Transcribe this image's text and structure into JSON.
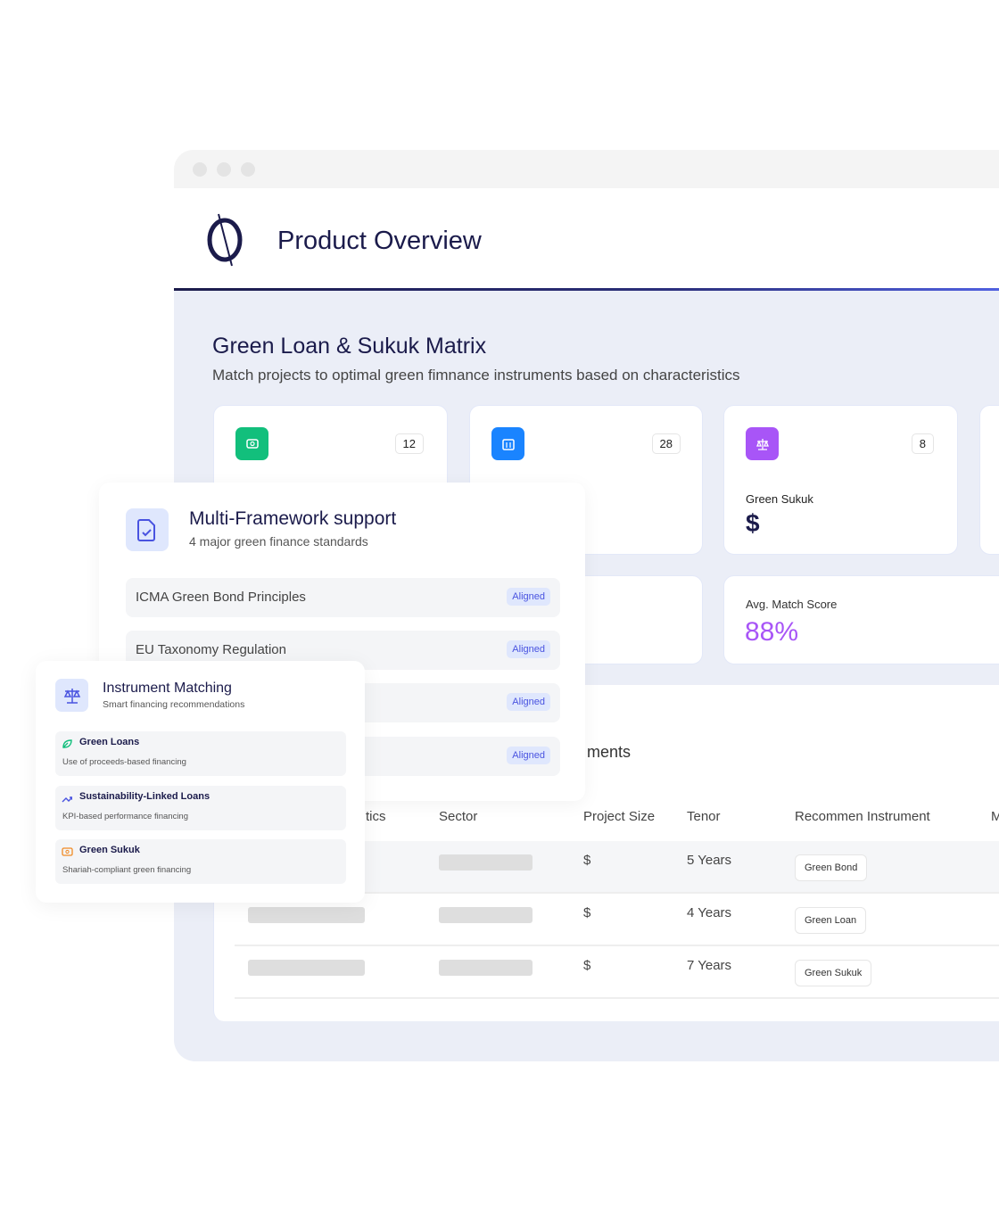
{
  "header": {
    "title": "Product Overview"
  },
  "matrix": {
    "title": "Green Loan & Sukuk Matrix",
    "subtitle": "Match projects to optimal green fimnance instruments based on characteristics"
  },
  "stats": [
    {
      "icon": "money-icon",
      "color": "#12bf7c",
      "count": "12"
    },
    {
      "icon": "building-icon",
      "color": "#1a84ff",
      "count": "28"
    },
    {
      "icon": "scale-icon",
      "color": "#a855f7",
      "count": "8",
      "label": "Green Sukuk",
      "value": "$"
    }
  ],
  "avg": {
    "label": "Avg. Match Score",
    "value": "88%",
    "color": "#a855f7"
  },
  "table": {
    "heading_fragment": "ments",
    "headers": [
      "tics",
      "Sector",
      "Project Size",
      "Tenor",
      "Recommen Instrument",
      "M"
    ],
    "rows": [
      {
        "size": "$",
        "tenor": "5 Years",
        "instrument": "Green Bond"
      },
      {
        "size": "$",
        "tenor": "4 Years",
        "instrument": "Green Loan"
      },
      {
        "size": "$",
        "tenor": "7 Years",
        "instrument": "Green Sukuk"
      }
    ]
  },
  "framework": {
    "title": "Multi-Framework support",
    "subtitle": "4 major green finance standards",
    "items": [
      {
        "label": "ICMA Green Bond  Principles",
        "status": "Aligned"
      },
      {
        "label": "EU Taxonomy Regulation",
        "status": "Aligned"
      },
      {
        "label": "",
        "status": "Aligned"
      },
      {
        "label": "",
        "status": "Aligned"
      }
    ]
  },
  "instrument": {
    "title": "Instrument Matching",
    "subtitle": "Smart financing recommendations",
    "items": [
      {
        "icon": "leaf-icon",
        "color": "#12bf7c",
        "title": "Green Loans",
        "desc": "Use of proceeds-based financing"
      },
      {
        "icon": "trend-up-icon",
        "color": "#4953e0",
        "title": "Sustainability-Linked Loans",
        "desc": "KPI-based performance financing"
      },
      {
        "icon": "cash-icon",
        "color": "#f08a24",
        "title": "Green Sukuk",
        "desc": "Shariah-compliant green financing"
      }
    ]
  }
}
